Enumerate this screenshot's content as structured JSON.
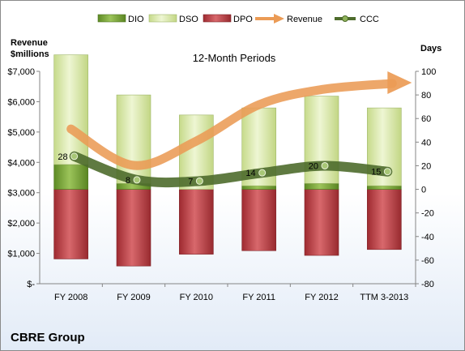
{
  "chart_data": {
    "type": "bar",
    "title": "12-Month Periods",
    "company": "CBRE Group",
    "left_axis_label": [
      "Revenue",
      "$millions"
    ],
    "right_axis_label": "Days",
    "categories": [
      "FY 2008",
      "FY 2009",
      "FY 2010",
      "FY 2011",
      "FY 2012",
      "TTM 3-2013"
    ],
    "left_ylim": [
      0,
      7000
    ],
    "left_ticks": [
      "$-",
      "$1,000",
      "$2,000",
      "$3,000",
      "$4,000",
      "$5,000",
      "$6,000",
      "$7,000"
    ],
    "right_ylim": [
      -80,
      100
    ],
    "right_ticks": [
      "-80",
      "-60",
      "-40",
      "-20",
      "0",
      "20",
      "40",
      "60",
      "80",
      "100"
    ],
    "legend": [
      "DIO",
      "DSO",
      "DPO",
      "Revenue",
      "CCC"
    ],
    "series": [
      {
        "name": "DIO",
        "axis": "days",
        "values": [
          21,
          5,
          0,
          3,
          5,
          3
        ]
      },
      {
        "name": "DSO",
        "axis": "days",
        "values": [
          93,
          75,
          63,
          66,
          74,
          66
        ]
      },
      {
        "name": "DPO",
        "axis": "days",
        "values": [
          -59,
          -65,
          -55,
          -52,
          -56,
          -51
        ]
      },
      {
        "name": "Revenue",
        "axis": "revenue",
        "values": [
          5100,
          3900,
          4700,
          5900,
          6400,
          6600
        ]
      },
      {
        "name": "CCC",
        "axis": "days",
        "values": [
          28,
          8,
          7,
          14,
          20,
          15
        ]
      }
    ],
    "ccc_labels": [
      "28",
      "8",
      "7",
      "14",
      "20",
      "15"
    ],
    "colors": {
      "DIO": "#6f9a2e",
      "DSO": "#d8e7a6",
      "DPO": "#b9393f",
      "Revenue": "#eb9b55",
      "CCC": "#4e6c2c"
    }
  }
}
